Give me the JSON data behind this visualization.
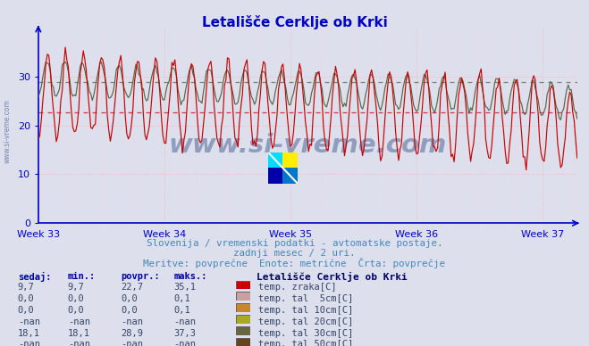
{
  "title": "Letališče Cerklje ob Krki",
  "subtitle1": "Slovenija / vremenski podatki - avtomatske postaje.",
  "subtitle2": "zadnji mesec / 2 uri.",
  "subtitle3": "Meritve: povprečne  Enote: metrične  Črta: povprečje",
  "xlabel_ticks": [
    "Week 33",
    "Week 34",
    "Week 35",
    "Week 36",
    "Week 37"
  ],
  "ylim": [
    0,
    40
  ],
  "yticks": [
    0,
    10,
    20,
    30
  ],
  "background_color": "#dde0ec",
  "axis_color": "#0000cc",
  "watermark": "www.si-vreme.com",
  "avg_red_line": 22.7,
  "avg_dark_line": 28.9,
  "line_color_red": "#cc0000",
  "line_color_dark": "#556644",
  "legend_title": "Letališče Cerklje ob Krki",
  "legend_entries": [
    {
      "label": "temp. zraka[C]",
      "color": "#cc0000"
    },
    {
      "label": "temp. tal  5cm[C]",
      "color": "#c8a0a0"
    },
    {
      "label": "temp. tal 10cm[C]",
      "color": "#c8882a"
    },
    {
      "label": "temp. tal 20cm[C]",
      "color": "#aaaa22"
    },
    {
      "label": "temp. tal 30cm[C]",
      "color": "#666644"
    },
    {
      "label": "temp. tal 50cm[C]",
      "color": "#664422"
    }
  ],
  "table_headers": [
    "sedaj:",
    "min.:",
    "povpr.:",
    "maks.:"
  ],
  "table_rows": [
    [
      "9,7",
      "9,7",
      "22,7",
      "35,1"
    ],
    [
      "0,0",
      "0,0",
      "0,0",
      "0,1"
    ],
    [
      "0,0",
      "0,0",
      "0,0",
      "0,1"
    ],
    [
      "-nan",
      "-nan",
      "-nan",
      "-nan"
    ],
    [
      "18,1",
      "18,1",
      "28,9",
      "37,3"
    ],
    [
      "-nan",
      "-nan",
      "-nan",
      "-nan"
    ]
  ],
  "n_points": 360,
  "n_per_week": 84
}
